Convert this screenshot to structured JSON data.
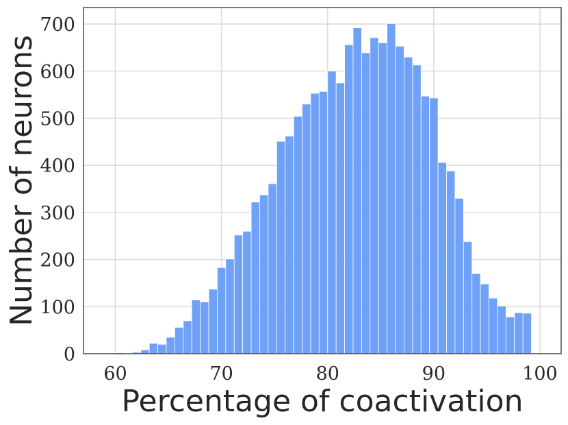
{
  "chart_data": {
    "type": "bar",
    "subtype": "histogram",
    "xlabel": "Percentage of coactivation",
    "ylabel": "Number of neurons",
    "xlim": [
      57,
      102
    ],
    "ylim": [
      0,
      735
    ],
    "xticks": [
      60,
      70,
      80,
      90,
      100
    ],
    "yticks": [
      0,
      100,
      200,
      300,
      400,
      500,
      600,
      700
    ],
    "grid": true,
    "color": "#5f98f5",
    "bin_width": 0.8,
    "bin_start": 60.0,
    "values": [
      2,
      1,
      3,
      8,
      22,
      20,
      35,
      56,
      70,
      114,
      110,
      137,
      183,
      201,
      252,
      260,
      322,
      337,
      361,
      451,
      462,
      504,
      530,
      553,
      557,
      600,
      575,
      656,
      692,
      639,
      671,
      660,
      701,
      653,
      630,
      613,
      547,
      543,
      406,
      388,
      330,
      238,
      170,
      148,
      118,
      101,
      78,
      87,
      86
    ]
  }
}
